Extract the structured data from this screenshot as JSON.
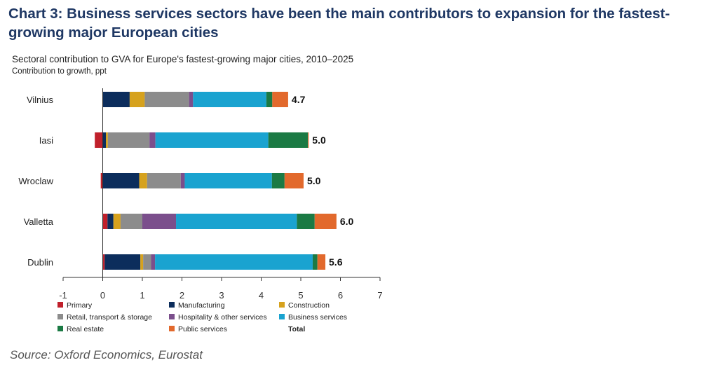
{
  "header": {
    "title": "Chart 3: Business services sectors have been the main contributors to expansion for the fastest-growing major European cities"
  },
  "footer": {
    "source": "Source: Oxford Economics, Eurostat"
  },
  "chart_data": {
    "type": "bar",
    "orientation": "horizontal",
    "stacked": true,
    "title": "Sectoral contribution to GVA for Europe's fastest-growing major cities, 2010–2025",
    "subtitle": "Contribution to growth, ppt",
    "categories": [
      "Vilnius",
      "Iasi",
      "Wroclaw",
      "Valletta",
      "Dublin"
    ],
    "xlim": [
      -1,
      7
    ],
    "xticks": [
      "-1",
      "0",
      "1",
      "2",
      "3",
      "4",
      "5",
      "6",
      "7"
    ],
    "grid": false,
    "legend_position": "bottom",
    "series": [
      {
        "name": "Primary",
        "color": "#c0202b",
        "values": [
          0.0,
          -0.2,
          -0.05,
          0.12,
          0.05
        ]
      },
      {
        "name": "Manufacturing",
        "color": "#0c2d5c",
        "values": [
          0.68,
          0.08,
          0.92,
          0.15,
          0.9
        ]
      },
      {
        "name": "Construction",
        "color": "#d6a21e",
        "values": [
          0.38,
          0.05,
          0.2,
          0.18,
          0.07
        ]
      },
      {
        "name": "Retail, transport & storage",
        "color": "#8c8c8c",
        "values": [
          1.12,
          1.05,
          0.85,
          0.55,
          0.2
        ]
      },
      {
        "name": "Hospitality & other services",
        "color": "#7b4f8c",
        "values": [
          0.1,
          0.15,
          0.1,
          0.85,
          0.1
        ]
      },
      {
        "name": "Business services",
        "color": "#1aa3d0",
        "values": [
          1.85,
          2.85,
          2.2,
          3.05,
          3.98
        ]
      },
      {
        "name": "Real estate",
        "color": "#1b7a44",
        "values": [
          0.15,
          1.0,
          0.32,
          0.45,
          0.12
        ]
      },
      {
        "name": "Public services",
        "color": "#e2692c",
        "values": [
          0.4,
          0.02,
          0.48,
          0.55,
          0.2
        ]
      }
    ],
    "totals": {
      "label": "Total",
      "values": [
        4.7,
        5.0,
        5.0,
        6.0,
        5.6
      ],
      "labels": [
        "4.7",
        "5.0",
        "5.0",
        "6.0",
        "5.6"
      ]
    }
  }
}
